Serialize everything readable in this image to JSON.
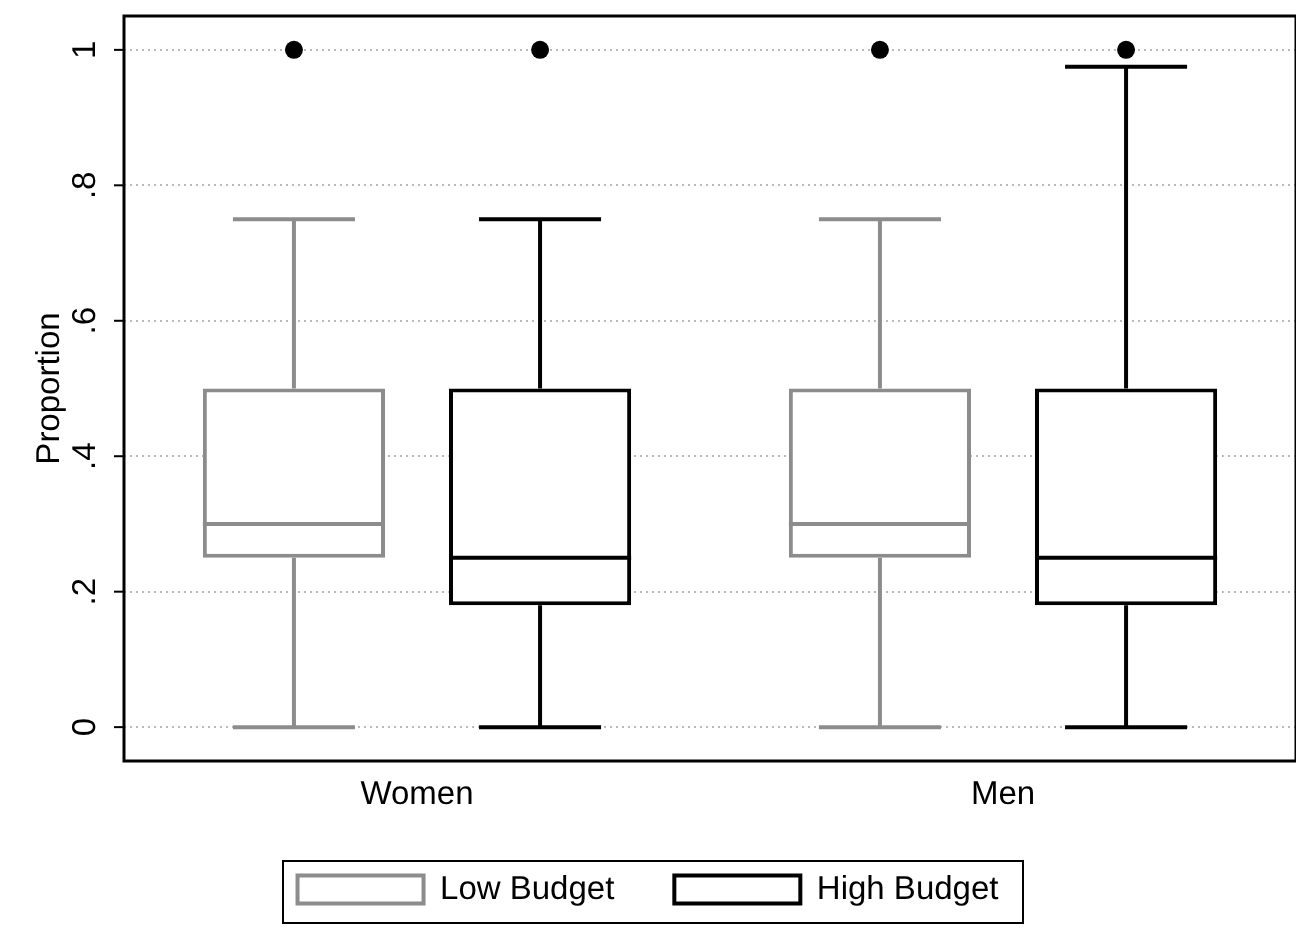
{
  "chart_data": {
    "type": "box",
    "ylabel": "Proportion",
    "categories": [
      "Women",
      "Men"
    ],
    "series": [
      {
        "name": "Low Budget",
        "color": "#8c8c8c",
        "boxes": [
          {
            "low": 0,
            "q1": 0.25,
            "median": 0.3,
            "q3": 0.5,
            "high": 0.75,
            "outliers": [
              1
            ]
          },
          {
            "low": 0,
            "q1": 0.25,
            "median": 0.3,
            "q3": 0.5,
            "high": 0.75,
            "outliers": [
              1
            ]
          }
        ]
      },
      {
        "name": "High Budget",
        "color": "#000000",
        "boxes": [
          {
            "low": 0,
            "q1": 0.18,
            "median": 0.25,
            "q3": 0.5,
            "high": 0.75,
            "outliers": [
              1
            ]
          },
          {
            "low": 0,
            "q1": 0.18,
            "median": 0.25,
            "q3": 0.5,
            "high": 0.975,
            "outliers": [
              1
            ]
          }
        ]
      }
    ],
    "ylim": [
      -0.05,
      1.05
    ],
    "yticks": [
      0,
      {
        "value": 0.2,
        "label": ".2"
      },
      {
        "value": 0.4,
        "label": ".4"
      },
      {
        "value": 0.6,
        "label": ".6"
      },
      {
        "value": 0.8,
        "label": ".8"
      },
      1
    ],
    "grid": "y",
    "legend": "bottom",
    "marker": "circle"
  }
}
